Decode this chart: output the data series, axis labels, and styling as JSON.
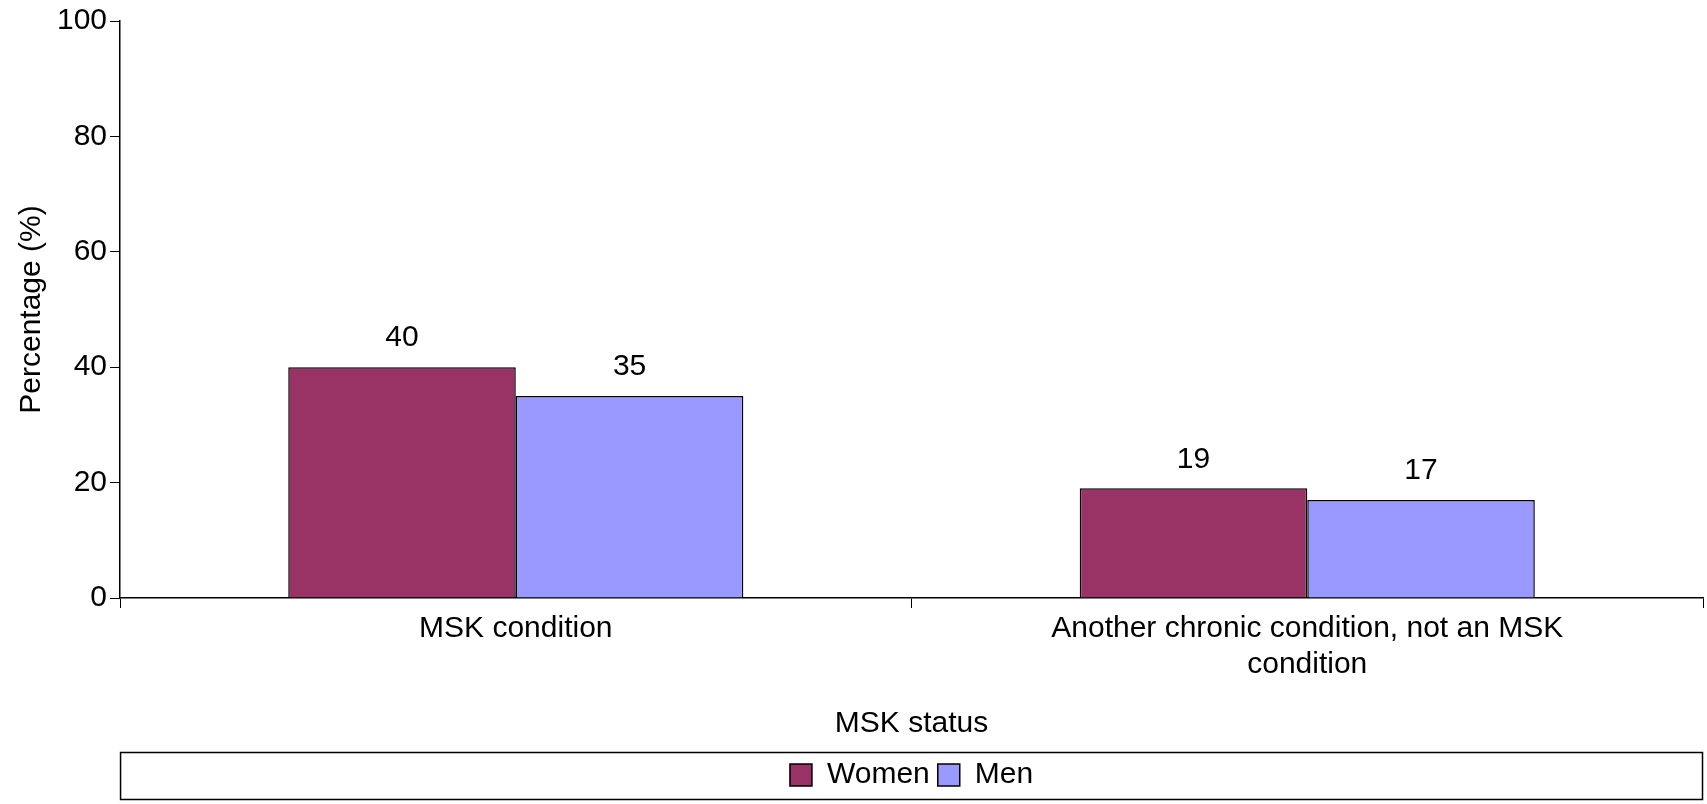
{
  "chart_data": {
    "type": "bar",
    "xlabel": "MSK status",
    "ylabel": "Percentage (%)",
    "categories": [
      "MSK condition",
      "Another chronic condition, not an MSK condition"
    ],
    "series": [
      {
        "name": "Women",
        "color": "#993366",
        "values": [
          40,
          19
        ]
      },
      {
        "name": "Men",
        "color": "#9999ff",
        "values": [
          35,
          17
        ]
      }
    ],
    "ylim": [
      0,
      100
    ],
    "yticks": [
      0,
      20,
      40,
      60,
      80,
      100
    ],
    "grid": false,
    "legend": "bottom",
    "data_labels": true
  }
}
